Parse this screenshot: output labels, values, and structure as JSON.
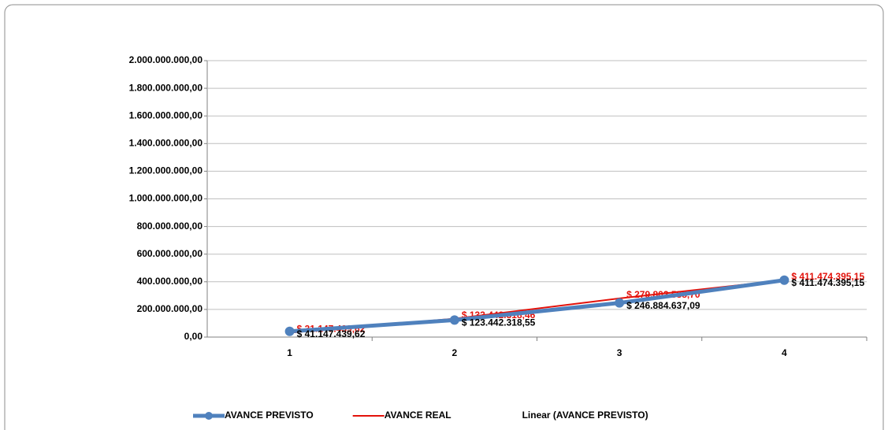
{
  "chart_data": {
    "type": "line",
    "categories": [
      "1",
      "2",
      "3",
      "4"
    ],
    "series": [
      {
        "name": "AVANCE PREVISTO",
        "color": "#4f81bd",
        "label_color": "#000000",
        "marker": true,
        "values": [
          41147439.62,
          123442318.55,
          246884637.09,
          411474395.15
        ],
        "value_labels": [
          "$ 41.147.439,62",
          "$ 123.442.318,55",
          "$ 246.884.637,09",
          "$ 411.474.395,15"
        ]
      },
      {
        "name": "AVANCE REAL",
        "color": "#e3120b",
        "label_color": "#e3120b",
        "marker": false,
        "values": [
          31147439.62,
          133442318.46,
          279802588.7,
          411474395.15
        ],
        "value_labels": [
          "$ 31.147.439,62",
          "$ 133.442.318,46",
          "$ 279.802.588,70",
          "$ 411.474.395,15"
        ]
      },
      {
        "name": "Linear (AVANCE PREVISTO)",
        "color": null,
        "marker": false,
        "values": [
          20600000,
          144000000,
          267500000,
          391000000
        ]
      }
    ],
    "ylim": [
      0,
      2000000000
    ],
    "yticks": [
      {
        "value": 0,
        "label": "0,00"
      },
      {
        "value": 200000000,
        "label": "200.000.000,00"
      },
      {
        "value": 400000000,
        "label": "400.000.000,00"
      },
      {
        "value": 600000000,
        "label": "600.000.000,00"
      },
      {
        "value": 800000000,
        "label": "800.000.000,00"
      },
      {
        "value": 1000000000,
        "label": "1.000.000.000,00"
      },
      {
        "value": 1200000000,
        "label": "1.200.000.000,00"
      },
      {
        "value": 1400000000,
        "label": "1.400.000.000,00"
      },
      {
        "value": 1600000000,
        "label": "1.600.000.000,00"
      },
      {
        "value": 1800000000,
        "label": "1.800.000.000,00"
      },
      {
        "value": 2000000000,
        "label": "2.000.000.000,00"
      }
    ],
    "grid": true
  }
}
